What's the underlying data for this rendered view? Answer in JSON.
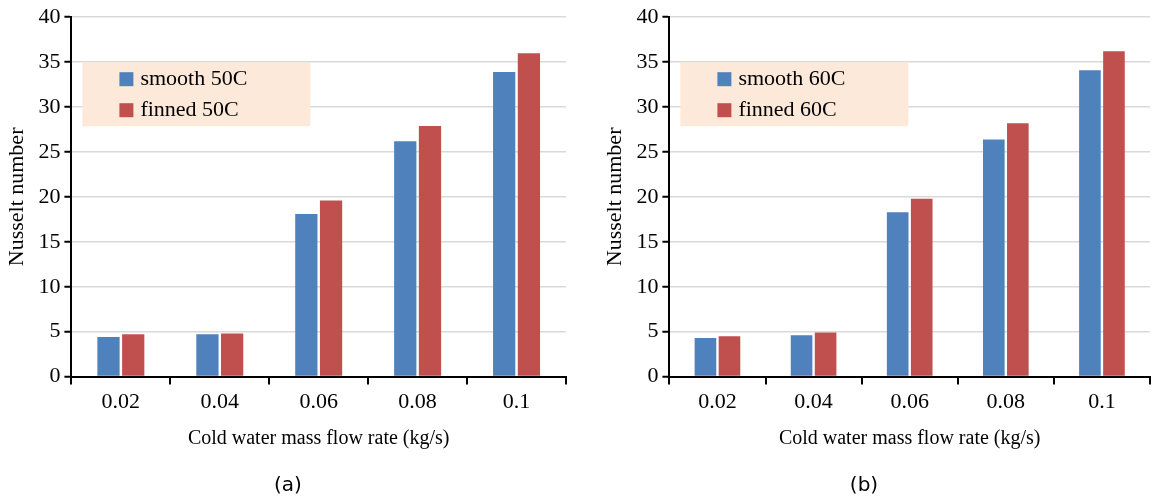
{
  "chart_data": [
    {
      "type": "bar",
      "xlabel": "Cold water mass flow rate (kg/s)",
      "ylabel": "Nusselt number",
      "categories": [
        "0.02",
        "0.04",
        "0.06",
        "0.08",
        "0.1"
      ],
      "series": [
        {
          "name": "smooth 50C",
          "color": "#4f81bd",
          "values": [
            4.4,
            4.7,
            18.1,
            26.2,
            33.9
          ]
        },
        {
          "name": "finned 50C",
          "color": "#c0504d",
          "values": [
            4.7,
            4.8,
            19.6,
            27.9,
            36.0
          ]
        }
      ],
      "ylim": [
        0,
        40
      ],
      "yticks": [
        0,
        5,
        10,
        15,
        20,
        25,
        30,
        35,
        40
      ],
      "grid": "y",
      "legend": "top left",
      "annotations": [
        "(a)"
      ]
    },
    {
      "type": "bar",
      "xlabel": "Cold water mass flow rate (kg/s)",
      "ylabel": "Nusselt number",
      "categories": [
        "0.02",
        "0.04",
        "0.06",
        "0.08",
        "0.1"
      ],
      "series": [
        {
          "name": "smooth 60C",
          "color": "#4f81bd",
          "values": [
            4.3,
            4.6,
            18.3,
            26.4,
            34.1
          ]
        },
        {
          "name": "finned 60C",
          "color": "#c0504d",
          "values": [
            4.5,
            4.9,
            19.8,
            28.2,
            36.2
          ]
        }
      ],
      "ylim": [
        0,
        40
      ],
      "yticks": [
        0,
        5,
        10,
        15,
        20,
        25,
        30,
        35,
        40
      ],
      "grid": "y",
      "legend": "top left",
      "annotations": [
        "(b)"
      ]
    }
  ]
}
